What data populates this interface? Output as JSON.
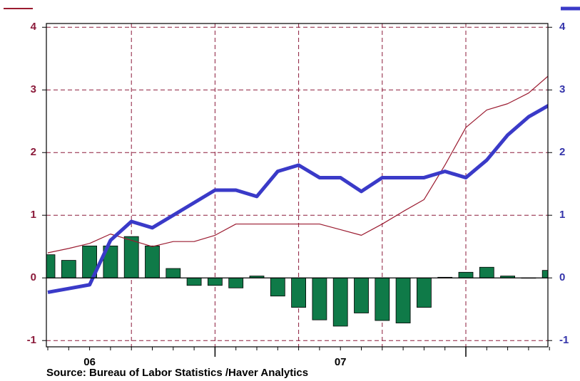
{
  "chart_data": {
    "type": "bar_line",
    "categories": [
      null,
      null,
      "06",
      null,
      null,
      null,
      null,
      null,
      null,
      null,
      null,
      null,
      null,
      null,
      "07",
      null,
      null,
      null,
      null,
      null,
      null,
      null,
      null,
      null,
      null
    ],
    "series": [
      {
        "type": "bar",
        "color": "#0f7a48",
        "axis": "y",
        "values": [
          0.37,
          0.28,
          0.51,
          0.51,
          0.66,
          0.51,
          0.15,
          -0.12,
          -0.12,
          -0.16,
          0.03,
          -0.29,
          -0.47,
          -0.67,
          -0.77,
          -0.56,
          -0.68,
          -0.72,
          -0.47,
          0.01,
          0.09,
          0.17,
          0.03,
          0,
          0.12
        ]
      },
      {
        "type": "line",
        "color": "#9b1b30",
        "axis": "y",
        "width": 1.2,
        "values": [
          0.4,
          0.47,
          0.55,
          0.7,
          0.6,
          0.5,
          0.58,
          0.58,
          0.68,
          0.86,
          0.86,
          0.86,
          0.86,
          0.86,
          0.77,
          0.68,
          0.86,
          1.06,
          1.25,
          1.8,
          2.4,
          2.68,
          2.78,
          2.95,
          3.24
        ]
      },
      {
        "type": "line",
        "color": "#3a3ac8",
        "axis": "y2",
        "width": 5,
        "values": [
          -0.23,
          -0.17,
          -0.11,
          0.6,
          0.9,
          0.8,
          1.0,
          1.2,
          1.4,
          1.4,
          1.3,
          1.7,
          1.8,
          1.6,
          1.6,
          1.38,
          1.6,
          1.6,
          1.6,
          1.7,
          1.6,
          1.88,
          2.28,
          2.57,
          2.76
        ]
      }
    ],
    "ylim": [
      -1.1,
      4.06
    ],
    "yticks": [
      -1,
      0,
      1,
      2,
      3,
      4
    ],
    "y2lim": [
      -1.1,
      4.06
    ],
    "y2ticks": [
      -1,
      0,
      1,
      2,
      3,
      4
    ],
    "grid": true,
    "source": "Source:  Bureau of Labor Statistics /Haver Analytics"
  }
}
